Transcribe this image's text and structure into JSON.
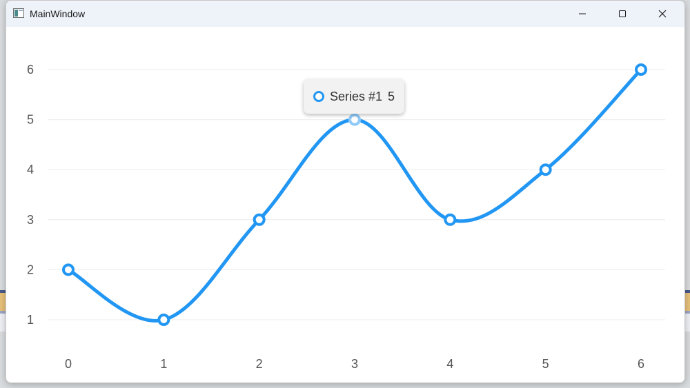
{
  "window": {
    "title": "MainWindow",
    "controls": {
      "minimize_icon": "minimize-icon",
      "maximize_icon": "maximize-icon",
      "close_icon": "close-icon"
    }
  },
  "tooltip": {
    "series_name": "Series #1",
    "value": "5"
  },
  "colors": {
    "series": "#2196f3",
    "grid": "#ebebeb",
    "tick_label": "#555555"
  },
  "chart_data": {
    "type": "line",
    "x": [
      0,
      1,
      2,
      3,
      4,
      5,
      6
    ],
    "series": [
      {
        "name": "Series #1",
        "values": [
          2,
          1,
          3,
          5,
          3,
          4,
          6
        ]
      }
    ],
    "xticks": [
      "0",
      "1",
      "2",
      "3",
      "4",
      "5",
      "6"
    ],
    "yticks": [
      "1",
      "2",
      "3",
      "4",
      "5",
      "6"
    ],
    "xlim": [
      0,
      6
    ],
    "ylim": [
      1,
      6
    ],
    "smooth": true,
    "grid": "horizontal",
    "highlighted_point": {
      "x": 3,
      "y": 5
    }
  }
}
